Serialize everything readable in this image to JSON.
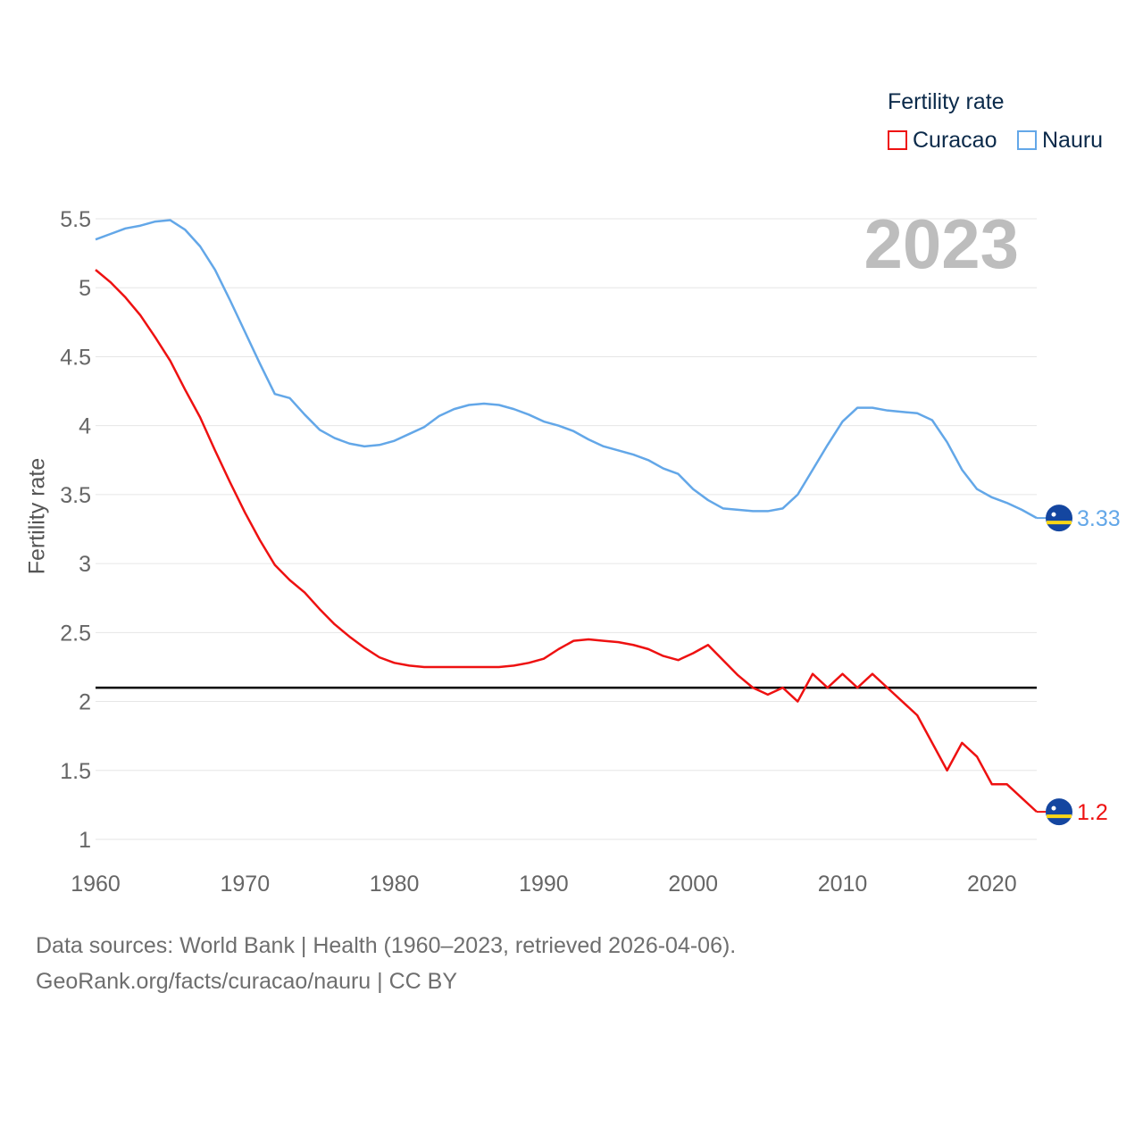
{
  "legend": {
    "title": "Fertility rate",
    "items": [
      {
        "name": "Curacao",
        "color": "#ee1111"
      },
      {
        "name": "Nauru",
        "color": "#63a7e8"
      }
    ]
  },
  "year_label": "2023",
  "footer": {
    "line1": "Data sources: World Bank | Health (1960–2023, retrieved 2026-04-06).",
    "line2": "GeoRank.org/facts/curacao/nauru | CC BY"
  },
  "chart_data": {
    "type": "line",
    "title": "Fertility rate",
    "xlabel": "",
    "ylabel": "Fertility rate",
    "xlim": [
      1960,
      2023
    ],
    "ylim": [
      1,
      5.5
    ],
    "x_ticks": [
      1960,
      1970,
      1980,
      1990,
      2000,
      2010,
      2020
    ],
    "y_ticks": [
      1,
      1.5,
      2,
      2.5,
      3,
      3.5,
      4,
      4.5,
      5,
      5.5
    ],
    "y_tick_labels": [
      "1",
      "1.5",
      "2",
      "2.5",
      "3",
      "3.5",
      "4",
      "4.5",
      "5",
      "5.5"
    ],
    "grid": true,
    "reference_line": {
      "y": 2.1,
      "color": "#000000"
    },
    "x": [
      1960,
      1961,
      1962,
      1963,
      1964,
      1965,
      1966,
      1967,
      1968,
      1969,
      1970,
      1971,
      1972,
      1973,
      1974,
      1975,
      1976,
      1977,
      1978,
      1979,
      1980,
      1981,
      1982,
      1983,
      1984,
      1985,
      1986,
      1987,
      1988,
      1989,
      1990,
      1991,
      1992,
      1993,
      1994,
      1995,
      1996,
      1997,
      1998,
      1999,
      2000,
      2001,
      2002,
      2003,
      2004,
      2005,
      2006,
      2007,
      2008,
      2009,
      2010,
      2011,
      2012,
      2013,
      2014,
      2015,
      2016,
      2017,
      2018,
      2019,
      2020,
      2021,
      2022,
      2023
    ],
    "series": [
      {
        "name": "Curacao",
        "color": "#ee1111",
        "end_label": "1.2",
        "values": [
          5.13,
          5.04,
          4.93,
          4.8,
          4.64,
          4.47,
          4.26,
          4.06,
          3.82,
          3.59,
          3.37,
          3.17,
          2.99,
          2.88,
          2.79,
          2.67,
          2.56,
          2.47,
          2.39,
          2.32,
          2.28,
          2.26,
          2.25,
          2.25,
          2.25,
          2.25,
          2.25,
          2.25,
          2.26,
          2.28,
          2.31,
          2.38,
          2.44,
          2.45,
          2.44,
          2.43,
          2.41,
          2.38,
          2.33,
          2.3,
          2.35,
          2.41,
          2.3,
          2.19,
          2.1,
          2.05,
          2.1,
          2.0,
          2.2,
          2.1,
          2.2,
          2.1,
          2.2,
          2.1,
          2.0,
          1.9,
          1.7,
          1.5,
          1.7,
          1.6,
          1.4,
          1.4,
          1.3,
          1.2
        ]
      },
      {
        "name": "Nauru",
        "color": "#63a7e8",
        "end_label": "3.33",
        "values": [
          5.35,
          5.39,
          5.43,
          5.45,
          5.48,
          5.49,
          5.42,
          5.3,
          5.13,
          4.91,
          4.68,
          4.45,
          4.23,
          4.2,
          4.08,
          3.97,
          3.91,
          3.87,
          3.85,
          3.86,
          3.89,
          3.94,
          3.99,
          4.07,
          4.12,
          4.15,
          4.16,
          4.15,
          4.12,
          4.08,
          4.03,
          4.0,
          3.96,
          3.9,
          3.85,
          3.82,
          3.79,
          3.75,
          3.69,
          3.65,
          3.54,
          3.46,
          3.4,
          3.39,
          3.38,
          3.38,
          3.4,
          3.5,
          3.68,
          3.86,
          4.03,
          4.13,
          4.13,
          4.11,
          4.1,
          4.09,
          4.04,
          3.88,
          3.68,
          3.54,
          3.48,
          3.44,
          3.39,
          3.33
        ]
      }
    ]
  }
}
